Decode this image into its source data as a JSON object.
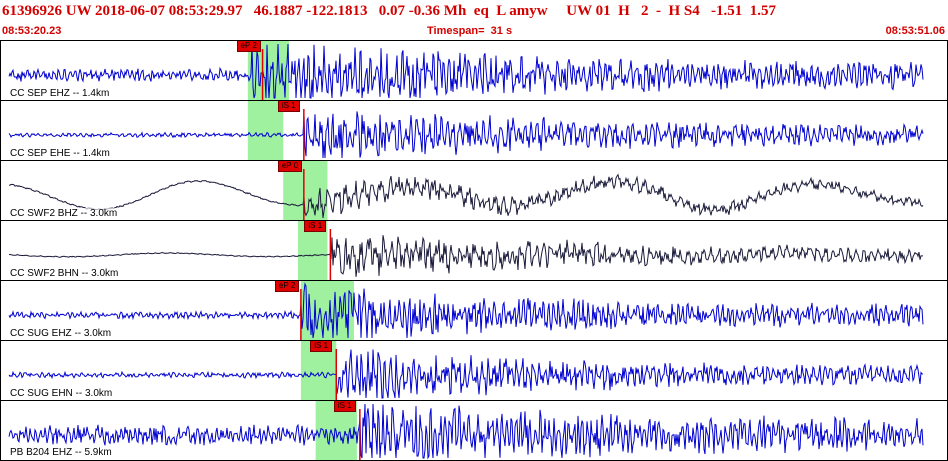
{
  "header": {
    "title": "61396926 UW 2018-06-07 08:53:29.97   46.1887 -122.1813   0.07 -0.36 Mh  eq  L amyw     UW 01  H   2  -  H S4   -1.51  1.57",
    "start_time": "08:53:20.23",
    "timespan": "Timespan=  31 s",
    "end_time": "08:53:51.06"
  },
  "colors": {
    "header_red": "#d40000",
    "trace_blue": "#0000d0",
    "trace_dark": "#1a1a3a",
    "pick_band": "#9ff09f",
    "pick_line": "#e10000",
    "pick_tag": "#e10000"
  },
  "time_window": {
    "start_s": 0,
    "end_s": 31
  },
  "channels": [
    {
      "label": "CC SEP EHZ -- 1.4km",
      "pick": "eP 2",
      "pick_time_s": 8.6,
      "band_start_s": 8.1,
      "band_end_s": 9.5,
      "trace_color": "blue",
      "noise": 0.22,
      "signal": 0.9,
      "decay": 7,
      "freq": 2.2,
      "long_period": 0
    },
    {
      "label": "CC SEP EHE -- 1.4km",
      "pick": "iS 1",
      "pick_time_s": 10.0,
      "band_start_s": 8.1,
      "band_end_s": 9.3,
      "trace_color": "blue",
      "noise": 0.08,
      "signal": 0.85,
      "decay": 8,
      "freq": 1.9,
      "long_period": 0
    },
    {
      "label": "CC SWF2 BHZ -- 3.0km",
      "pick": "eP 0",
      "pick_time_s": 10.0,
      "band_start_s": 9.3,
      "band_end_s": 10.8,
      "trace_color": "dark",
      "noise": 0.03,
      "signal": 0.45,
      "decay": 9,
      "freq": 1.3,
      "long_period": 0.45
    },
    {
      "label": "CC SWF2 BHN -- 3.0km",
      "pick": "iS 1",
      "pick_time_s": 10.9,
      "band_start_s": 9.8,
      "band_end_s": 10.8,
      "trace_color": "dark",
      "noise": 0.02,
      "signal": 0.7,
      "decay": 8,
      "freq": 1.5,
      "long_period": 0.06
    },
    {
      "label": "CC SUG EHZ -- 3.0km",
      "pick": "eP 2",
      "pick_time_s": 9.9,
      "band_start_s": 9.9,
      "band_end_s": 11.7,
      "trace_color": "blue",
      "noise": 0.12,
      "signal": 0.95,
      "decay": 6,
      "freq": 2.3,
      "long_period": 0
    },
    {
      "label": "CC SUG EHN -- 3.0km",
      "pick": "iS 1",
      "pick_time_s": 11.1,
      "band_start_s": 9.9,
      "band_end_s": 11.1,
      "trace_color": "blue",
      "noise": 0.1,
      "signal": 0.8,
      "decay": 7,
      "freq": 2.0,
      "long_period": 0
    },
    {
      "label": "PB B204 EHZ -- 5.9km",
      "pick": "iS 1",
      "pick_time_s": 11.9,
      "band_start_s": 10.4,
      "band_end_s": 11.8,
      "trace_color": "blue",
      "noise": 0.35,
      "signal": 0.75,
      "decay": 7,
      "freq": 2.4,
      "long_period": 0
    }
  ]
}
